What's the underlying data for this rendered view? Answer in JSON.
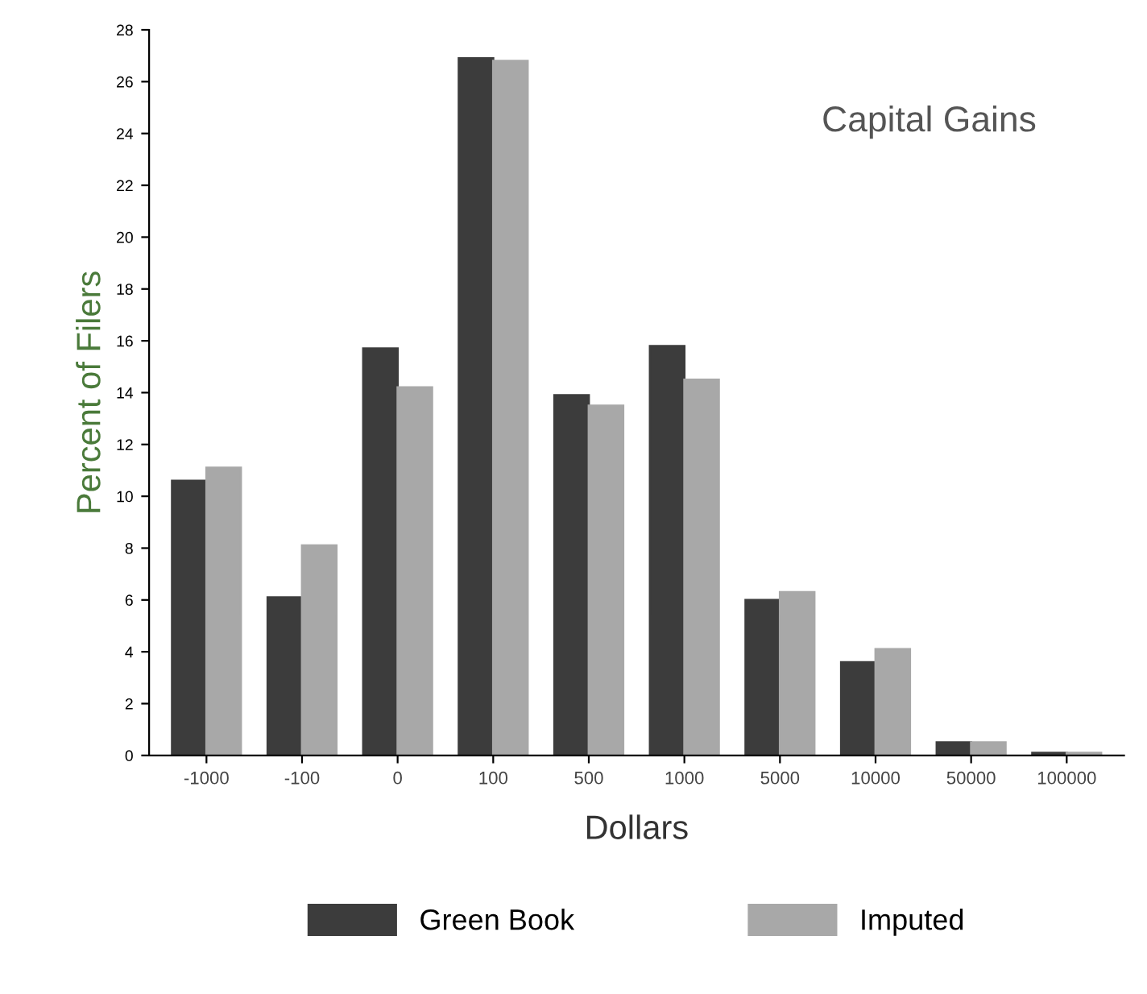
{
  "chart_data": {
    "type": "bar",
    "title": "Capital Gains",
    "xlabel": "Dollars",
    "ylabel": "Percent of Filers",
    "categories": [
      "-1000",
      "-100",
      "0",
      "100",
      "500",
      "1000",
      "5000",
      "10000",
      "50000",
      "100000"
    ],
    "series": [
      {
        "name": "Green Book",
        "color": "#3c3c3c",
        "values": [
          10.6,
          6.1,
          15.7,
          26.9,
          13.9,
          15.8,
          6.0,
          3.6,
          0.5,
          0.1
        ]
      },
      {
        "name": "Imputed",
        "color": "#a8a8a8",
        "values": [
          11.1,
          8.1,
          14.2,
          26.8,
          13.5,
          14.5,
          6.3,
          4.1,
          0.5,
          0.1
        ]
      }
    ],
    "ylim": [
      0,
      28
    ],
    "yticks": [
      0,
      2,
      4,
      6,
      8,
      10,
      12,
      14,
      16,
      18,
      20,
      22,
      24,
      26,
      28
    ],
    "grid": false,
    "legend": "bottom"
  }
}
